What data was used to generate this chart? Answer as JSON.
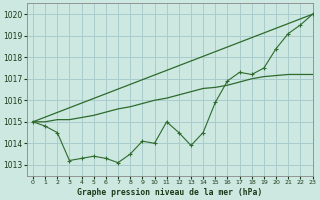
{
  "title": "Graphe pression niveau de la mer (hPa)",
  "background_color": "#cce8e0",
  "grid_color": "#aacccc",
  "line_color": "#2d6a2d",
  "xlim": [
    -0.5,
    23
  ],
  "ylim": [
    1012.5,
    1020.5
  ],
  "yticks": [
    1013,
    1014,
    1015,
    1016,
    1017,
    1018,
    1019,
    1020
  ],
  "xticks": [
    0,
    1,
    2,
    3,
    4,
    5,
    6,
    7,
    8,
    9,
    10,
    11,
    12,
    13,
    14,
    15,
    16,
    17,
    18,
    19,
    20,
    21,
    22,
    23
  ],
  "series_main": [
    1015.0,
    1014.8,
    1014.5,
    1013.2,
    1013.3,
    1013.4,
    1013.3,
    1013.1,
    1013.5,
    1014.1,
    1014.0,
    1015.0,
    1014.5,
    1013.9,
    1014.5,
    1015.9,
    1016.9,
    1017.3,
    1017.2,
    1017.5,
    1018.4,
    1019.1,
    1019.5,
    1020.0
  ],
  "series_smooth": [
    1015.0,
    1015.0,
    1015.1,
    1015.1,
    1015.2,
    1015.3,
    1015.45,
    1015.6,
    1015.7,
    1015.85,
    1016.0,
    1016.1,
    1016.25,
    1016.4,
    1016.55,
    1016.6,
    1016.7,
    1016.85,
    1017.0,
    1017.1,
    1017.15,
    1017.2,
    1017.2,
    1017.2
  ],
  "series_straight": [
    1015.0,
    1015.217,
    1015.435,
    1015.652,
    1015.87,
    1016.087,
    1016.304,
    1016.522,
    1016.739,
    1016.957,
    1017.174,
    1017.391,
    1017.609,
    1017.826,
    1018.043,
    1018.261,
    1018.478,
    1018.696,
    1018.913,
    1019.13,
    1019.348,
    1019.565,
    1019.783,
    1020.0
  ]
}
